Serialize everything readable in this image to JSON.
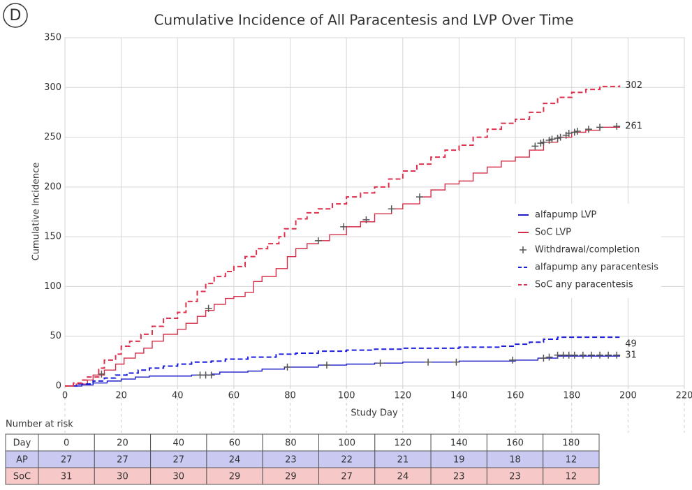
{
  "chart_data": {
    "type": "step",
    "panel_label": "D",
    "title": "Cumulative Incidence of All Paracentesis and LVP Over Time",
    "xlabel": "Study Day",
    "ylabel": "Cumulative Incidence",
    "xlim": [
      0,
      220
    ],
    "ylim": [
      0,
      350
    ],
    "xticks": [
      0,
      20,
      40,
      60,
      80,
      100,
      120,
      140,
      160,
      180,
      200,
      220
    ],
    "yticks": [
      0,
      50,
      100,
      150,
      200,
      250,
      300,
      350
    ],
    "grid": true,
    "legend": "right",
    "series": [
      {
        "name": "alfapump LVP",
        "color": "#1c1cc8",
        "style": "solid",
        "end_label": "31",
        "x": [
          0,
          6,
          10,
          15,
          20,
          25,
          30,
          45,
          52,
          55,
          65,
          70,
          78,
          90,
          100,
          110,
          120,
          140,
          160,
          168,
          175,
          197
        ],
        "values": [
          0,
          1,
          3,
          5,
          7,
          9,
          10,
          11,
          12,
          14,
          15,
          17,
          19,
          21,
          22,
          23,
          24,
          25,
          26,
          28,
          30,
          31
        ]
      },
      {
        "name": "SoC LVP",
        "color": "#d42d47",
        "style": "solid",
        "end_label": "261",
        "x": [
          0,
          4,
          8,
          10,
          14,
          18,
          21,
          25,
          28,
          31,
          35,
          40,
          43,
          47,
          50,
          53,
          57,
          60,
          64,
          67,
          70,
          75,
          79,
          82,
          86,
          90,
          94,
          100,
          105,
          110,
          116,
          120,
          126,
          130,
          135,
          140,
          145,
          150,
          155,
          160,
          165,
          170,
          175,
          180,
          185,
          190,
          197
        ],
        "values": [
          0,
          2,
          6,
          11,
          16,
          22,
          28,
          33,
          38,
          45,
          52,
          57,
          63,
          70,
          76,
          82,
          88,
          90,
          94,
          105,
          110,
          118,
          130,
          138,
          143,
          146,
          152,
          160,
          165,
          173,
          178,
          183,
          190,
          197,
          203,
          206,
          214,
          220,
          226,
          230,
          237,
          245,
          250,
          255,
          257,
          260,
          261
        ]
      },
      {
        "name": "Withdrawal/completion",
        "color": "#555555",
        "style": "marker",
        "x": [
          13,
          51,
          90,
          99,
          107,
          116,
          126,
          167,
          169,
          170,
          172,
          173,
          175,
          176,
          178,
          179,
          181,
          182,
          186,
          190,
          196,
          48,
          50,
          52,
          79,
          93,
          112,
          129,
          139,
          159,
          170,
          172,
          175,
          177,
          179,
          181,
          184,
          187,
          190,
          193,
          196
        ],
        "values": [
          12,
          78,
          146,
          160,
          167,
          178,
          190,
          241,
          244,
          245,
          247,
          248,
          249,
          250,
          252,
          254,
          255,
          256,
          258,
          260,
          261,
          11,
          11,
          11,
          19,
          21,
          23,
          24,
          24,
          26,
          28,
          29,
          31,
          31,
          31,
          31,
          31,
          31,
          31,
          31,
          31
        ]
      },
      {
        "name": "alfapump any paracentesis",
        "color": "#1c1cdc",
        "style": "dashed",
        "end_label": "49",
        "x": [
          0,
          5,
          10,
          14,
          18,
          22,
          26,
          30,
          35,
          40,
          45,
          52,
          57,
          65,
          75,
          82,
          90,
          100,
          110,
          120,
          140,
          155,
          160,
          165,
          170,
          175,
          197
        ],
        "values": [
          0,
          2,
          5,
          8,
          11,
          13,
          16,
          18,
          20,
          22,
          24,
          25,
          27,
          29,
          32,
          33,
          35,
          36,
          37,
          38,
          39,
          40,
          42,
          44,
          47,
          49,
          49
        ]
      },
      {
        "name": "SoC any paracentesis",
        "color": "#de2f4c",
        "style": "dashed",
        "end_label": "302",
        "x": [
          0,
          3,
          6,
          8,
          12,
          14,
          18,
          20,
          23,
          27,
          31,
          35,
          40,
          43,
          47,
          50,
          53,
          57,
          60,
          64,
          68,
          72,
          76,
          78,
          82,
          86,
          90,
          95,
          100,
          105,
          110,
          115,
          120,
          125,
          130,
          135,
          140,
          145,
          150,
          155,
          160,
          165,
          170,
          175,
          180,
          185,
          190,
          197
        ],
        "values": [
          0,
          3,
          6,
          9,
          18,
          26,
          32,
          40,
          45,
          52,
          60,
          68,
          74,
          85,
          95,
          103,
          110,
          115,
          120,
          130,
          138,
          143,
          150,
          158,
          168,
          174,
          178,
          183,
          190,
          194,
          200,
          208,
          216,
          223,
          230,
          237,
          242,
          250,
          258,
          264,
          268,
          275,
          284,
          290,
          295,
          298,
          301,
          302
        ]
      }
    ],
    "risk_table": {
      "title": "Number at risk",
      "header": [
        "Day",
        0,
        20,
        40,
        60,
        80,
        100,
        120,
        140,
        160,
        180
      ],
      "rows": [
        {
          "label": "AP",
          "color": "#c9c9f2",
          "values": [
            27,
            27,
            27,
            24,
            23,
            22,
            21,
            19,
            18,
            12
          ]
        },
        {
          "label": "SoC",
          "color": "#f6c8c8",
          "values": [
            31,
            30,
            30,
            29,
            29,
            27,
            24,
            23,
            23,
            12
          ]
        }
      ]
    }
  }
}
